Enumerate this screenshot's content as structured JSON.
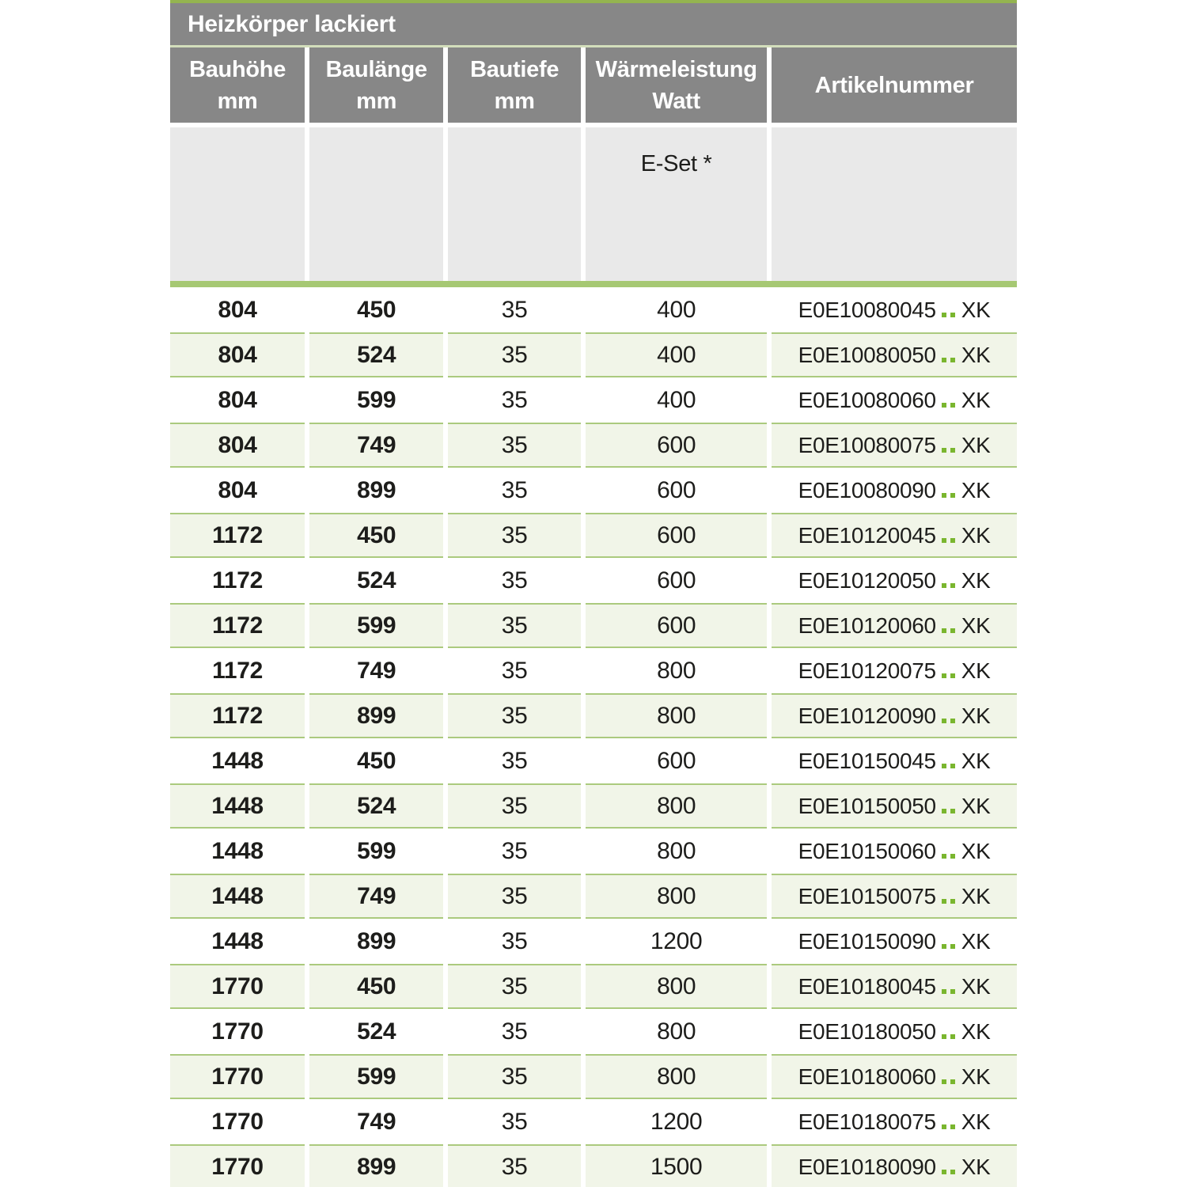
{
  "table": {
    "title": "Heizkörper lackiert",
    "columns": [
      {
        "line1": "Bauhöhe",
        "line2": "mm"
      },
      {
        "line1": "Baulänge",
        "line2": "mm"
      },
      {
        "line1": "Bautiefe",
        "line2": "mm"
      },
      {
        "line1": "Wärmeleistung",
        "line2": "Watt"
      },
      {
        "line1": "Artikelnummer",
        "line2": ""
      }
    ],
    "subheader_note": "E-Set *",
    "artikel_wildcard": "..",
    "artikel_suffix": "XK",
    "colors": {
      "header_gray": "#878787",
      "subheader_gray": "#e9e9e9",
      "accent_green": "#94b450",
      "divider_light_green": "#d3debb",
      "divider_thick_green": "#a6c873",
      "row_border_green": "#abca7e",
      "row_bg_green": "#f1f5e8",
      "wildcard_green": "#7ab62f"
    },
    "rows": [
      {
        "bauhoehe": "804",
        "baulaenge": "450",
        "bautiefe": "35",
        "watt": "400",
        "artikel": "E0E10080045"
      },
      {
        "bauhoehe": "804",
        "baulaenge": "524",
        "bautiefe": "35",
        "watt": "400",
        "artikel": "E0E10080050"
      },
      {
        "bauhoehe": "804",
        "baulaenge": "599",
        "bautiefe": "35",
        "watt": "400",
        "artikel": "E0E10080060"
      },
      {
        "bauhoehe": "804",
        "baulaenge": "749",
        "bautiefe": "35",
        "watt": "600",
        "artikel": "E0E10080075"
      },
      {
        "bauhoehe": "804",
        "baulaenge": "899",
        "bautiefe": "35",
        "watt": "600",
        "artikel": "E0E10080090"
      },
      {
        "bauhoehe": "1172",
        "baulaenge": "450",
        "bautiefe": "35",
        "watt": "600",
        "artikel": "E0E10120045"
      },
      {
        "bauhoehe": "1172",
        "baulaenge": "524",
        "bautiefe": "35",
        "watt": "600",
        "artikel": "E0E10120050"
      },
      {
        "bauhoehe": "1172",
        "baulaenge": "599",
        "bautiefe": "35",
        "watt": "600",
        "artikel": "E0E10120060"
      },
      {
        "bauhoehe": "1172",
        "baulaenge": "749",
        "bautiefe": "35",
        "watt": "800",
        "artikel": "E0E10120075"
      },
      {
        "bauhoehe": "1172",
        "baulaenge": "899",
        "bautiefe": "35",
        "watt": "800",
        "artikel": "E0E10120090"
      },
      {
        "bauhoehe": "1448",
        "baulaenge": "450",
        "bautiefe": "35",
        "watt": "600",
        "artikel": "E0E10150045"
      },
      {
        "bauhoehe": "1448",
        "baulaenge": "524",
        "bautiefe": "35",
        "watt": "800",
        "artikel": "E0E10150050"
      },
      {
        "bauhoehe": "1448",
        "baulaenge": "599",
        "bautiefe": "35",
        "watt": "800",
        "artikel": "E0E10150060"
      },
      {
        "bauhoehe": "1448",
        "baulaenge": "749",
        "bautiefe": "35",
        "watt": "800",
        "artikel": "E0E10150075"
      },
      {
        "bauhoehe": "1448",
        "baulaenge": "899",
        "bautiefe": "35",
        "watt": "1200",
        "artikel": "E0E10150090"
      },
      {
        "bauhoehe": "1770",
        "baulaenge": "450",
        "bautiefe": "35",
        "watt": "800",
        "artikel": "E0E10180045"
      },
      {
        "bauhoehe": "1770",
        "baulaenge": "524",
        "bautiefe": "35",
        "watt": "800",
        "artikel": "E0E10180050"
      },
      {
        "bauhoehe": "1770",
        "baulaenge": "599",
        "bautiefe": "35",
        "watt": "800",
        "artikel": "E0E10180060"
      },
      {
        "bauhoehe": "1770",
        "baulaenge": "749",
        "bautiefe": "35",
        "watt": "1200",
        "artikel": "E0E10180075"
      },
      {
        "bauhoehe": "1770",
        "baulaenge": "899",
        "bautiefe": "35",
        "watt": "1500",
        "artikel": "E0E10180090"
      }
    ]
  }
}
